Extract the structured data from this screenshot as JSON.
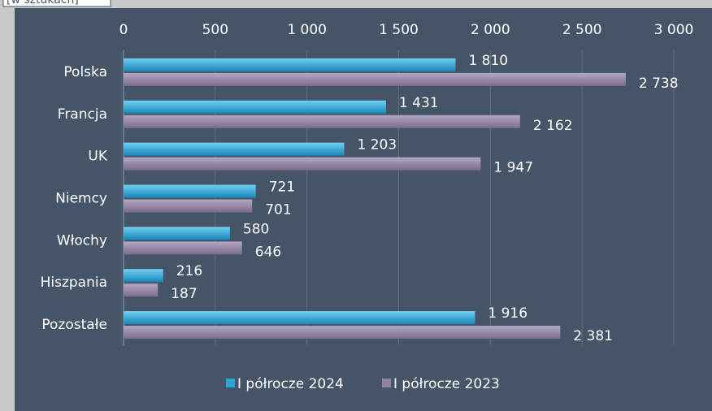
{
  "chart_data": {
    "type": "bar",
    "orientation": "horizontal",
    "subtitle": "[w sztukach]",
    "categories": [
      "Polska",
      "Francja",
      "UK",
      "Niemcy",
      "Włochy",
      "Hiszpania",
      "Pozostałe"
    ],
    "series": [
      {
        "name": "I półrocze 2024",
        "color": "#2aa5d8",
        "values": [
          1810,
          1431,
          1203,
          721,
          580,
          216,
          1916
        ],
        "value_labels": [
          "1 810",
          "1 431",
          "1 203",
          "721",
          "580",
          "216",
          "1 916"
        ]
      },
      {
        "name": "I półrocze 2023",
        "color": "#8f81a0",
        "values": [
          2738,
          2162,
          1947,
          701,
          646,
          187,
          2381
        ],
        "value_labels": [
          "2 738",
          "2 162",
          "1 947",
          "701",
          "646",
          "187",
          "2 381"
        ]
      }
    ],
    "xlim": [
      0,
      3000
    ],
    "xticks": [
      0,
      500,
      {
        "value": 1000,
        "label": "1 000"
      },
      {
        "value": 1500,
        "label": "1 500"
      },
      {
        "value": 2000,
        "label": "2 000"
      },
      {
        "value": 2500,
        "label": "2 500"
      },
      {
        "value": 3000,
        "label": "3 000"
      }
    ],
    "grid": true,
    "legend": "bottom"
  }
}
